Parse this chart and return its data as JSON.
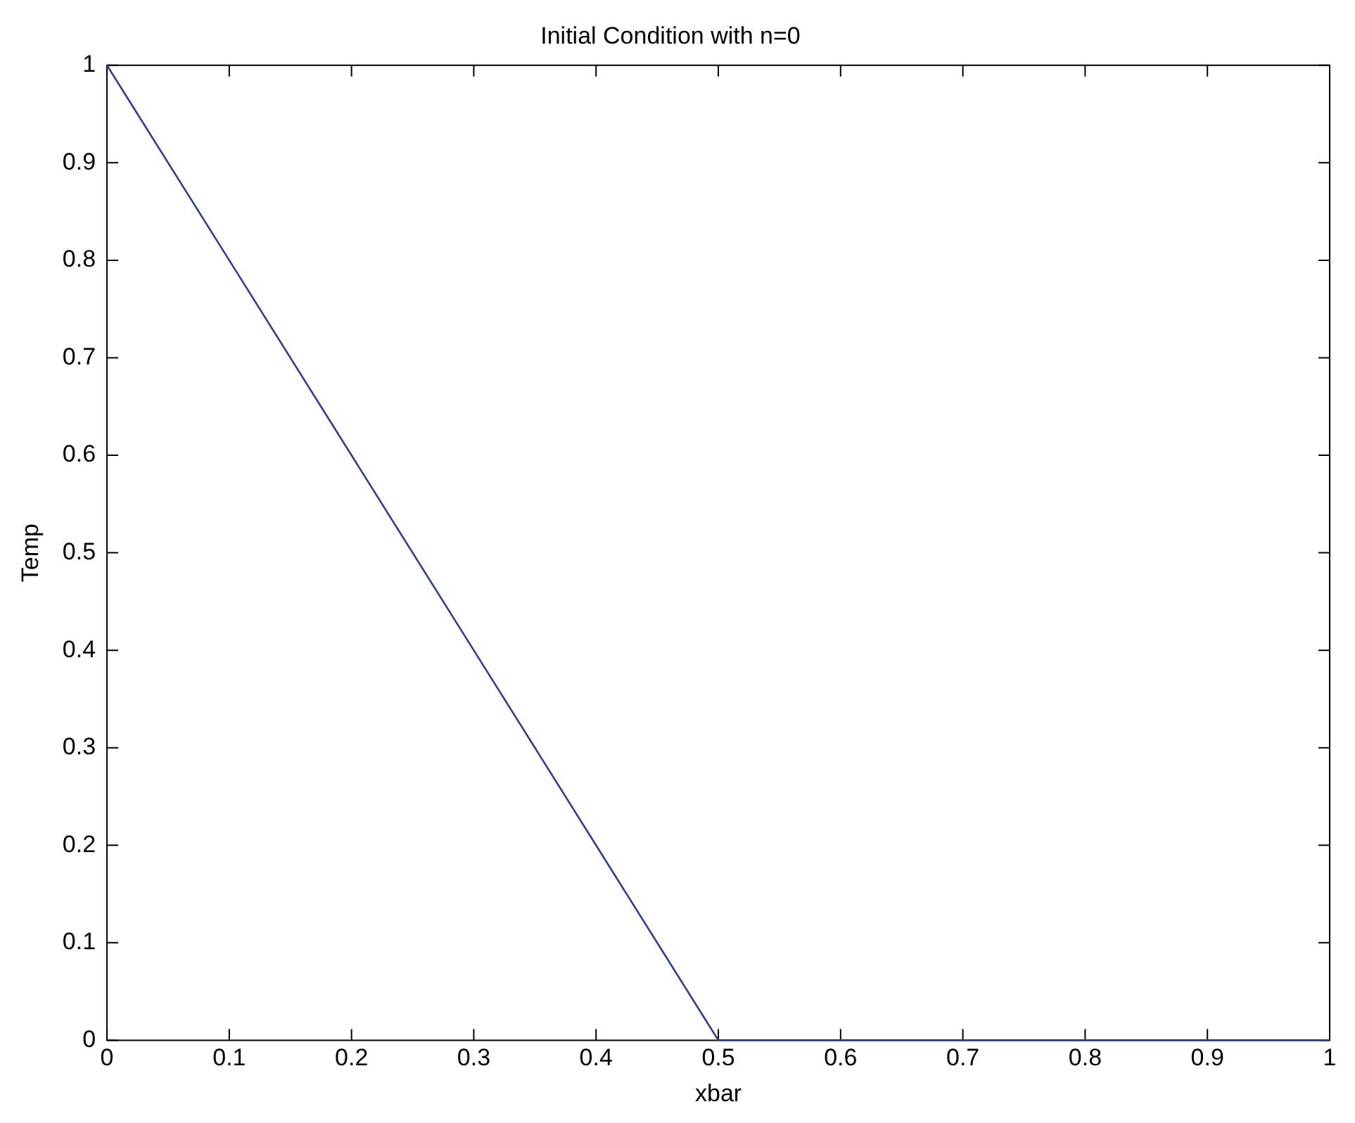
{
  "chart_data": {
    "type": "line",
    "title": "Initial Condition with n=0",
    "xlabel": "xbar",
    "ylabel": "Temp",
    "x": [
      0,
      0.1,
      0.2,
      0.3,
      0.4,
      0.5,
      0.6,
      0.7,
      0.8,
      0.9,
      1
    ],
    "series": [
      {
        "color": "#2b3f9a",
        "values": [
          1,
          0.8,
          0.6,
          0.4,
          0.2,
          0,
          0,
          0,
          0,
          0,
          0
        ]
      }
    ],
    "xlim": [
      0,
      1
    ],
    "xticks": [
      0,
      0.1,
      0.2,
      0.3,
      0.4,
      0.5,
      0.6,
      0.7,
      0.8,
      0.9,
      1
    ],
    "ylim": [
      0,
      1
    ],
    "yticks": [
      0,
      0.1,
      0.2,
      0.3,
      0.4,
      0.5,
      0.6,
      0.7,
      0.8,
      0.9,
      1
    ],
    "grid": false,
    "legend": false,
    "marker": "none",
    "line_style": "solid"
  }
}
